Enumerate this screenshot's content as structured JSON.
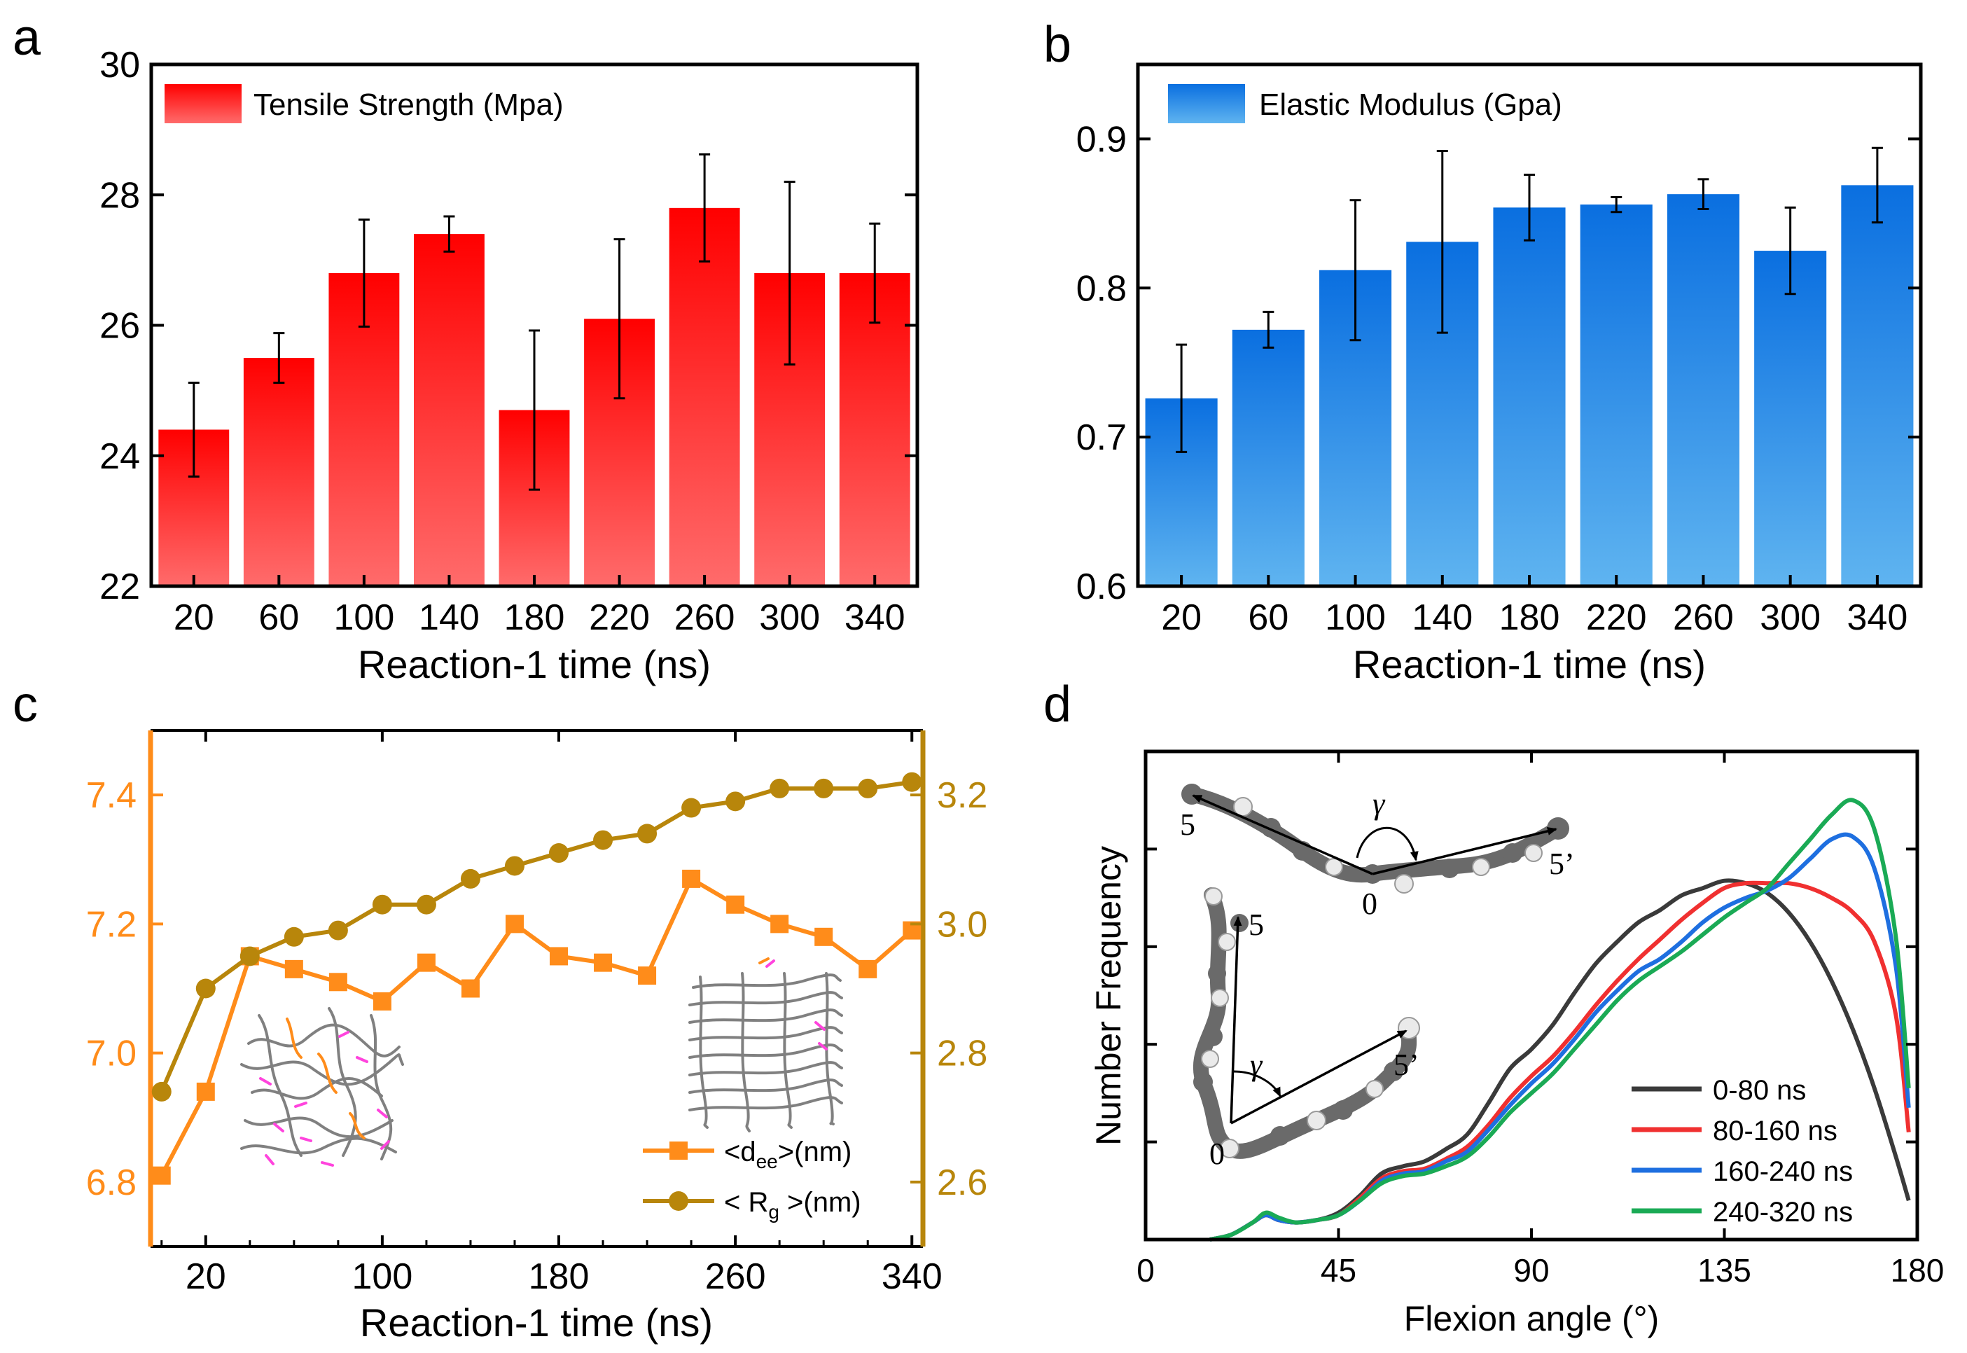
{
  "chart_data": [
    {
      "panel_label": "a",
      "type": "bar",
      "title": "",
      "legend": "Tensile Strength (Mpa)",
      "legend_position": "top-left",
      "xlabel": "Reaction-1 time (ns)",
      "ylabel": "",
      "categories": [
        "20",
        "60",
        "100",
        "140",
        "180",
        "220",
        "260",
        "300",
        "340"
      ],
      "values": [
        24.4,
        25.5,
        26.8,
        27.4,
        24.7,
        26.1,
        27.8,
        26.8,
        26.8
      ],
      "errors": [
        0.72,
        0.38,
        0.82,
        0.27,
        1.22,
        1.22,
        0.82,
        1.4,
        0.76
      ],
      "ylim": [
        22,
        30
      ],
      "yticks": [
        "22",
        "24",
        "26",
        "28",
        "30"
      ],
      "color_top": "#ff0000",
      "color_bottom": "#ff6b6b"
    },
    {
      "panel_label": "b",
      "type": "bar",
      "title": "",
      "legend": "Elastic Modulus (Gpa)",
      "legend_position": "top-left",
      "xlabel": "Reaction-1 time (ns)",
      "ylabel": "",
      "categories": [
        "20",
        "60",
        "100",
        "140",
        "180",
        "220",
        "260",
        "300",
        "340"
      ],
      "values": [
        0.726,
        0.772,
        0.812,
        0.831,
        0.854,
        0.856,
        0.863,
        0.825,
        0.869
      ],
      "errors": [
        0.036,
        0.012,
        0.047,
        0.061,
        0.022,
        0.005,
        0.01,
        0.029,
        0.025
      ],
      "ylim": [
        0.6,
        0.95
      ],
      "yticks": [
        "0.6",
        "0.7",
        "0.8",
        "0.9"
      ],
      "color_top": "#0a6fe0",
      "color_bottom": "#5fb4f0"
    },
    {
      "panel_label": "c",
      "type": "line",
      "title": "",
      "xlabel": "Reaction-1 time (ns)",
      "xticks": [
        "20",
        "100",
        "180",
        "260",
        "340"
      ],
      "xlim": [
        -5,
        345
      ],
      "left_ylim": [
        6.7,
        7.5
      ],
      "left_yticks": [
        "6.8",
        "7.0",
        "7.2",
        "7.4"
      ],
      "right_ylim": [
        2.5,
        3.3
      ],
      "right_yticks": [
        "2.6",
        "2.8",
        "3.0",
        "3.2"
      ],
      "legend_position": "bottom-right",
      "series": [
        {
          "name": "<d",
          "name_sub": "ee",
          "name_tail": ">(nm)",
          "axis": "left",
          "marker": "square",
          "color": "#ff8c1a",
          "x": [
            0,
            20,
            40,
            60,
            80,
            100,
            120,
            140,
            160,
            180,
            200,
            220,
            240,
            260,
            280,
            300,
            320,
            340
          ],
          "y": [
            6.81,
            6.94,
            7.15,
            7.13,
            7.11,
            7.08,
            7.14,
            7.1,
            7.2,
            7.15,
            7.14,
            7.12,
            7.27,
            7.23,
            7.2,
            7.18,
            7.13,
            7.19
          ]
        },
        {
          "name": "< R",
          "name_sub": "g",
          "name_tail": " >(nm)",
          "axis": "right",
          "marker": "circle",
          "color": "#b8860b",
          "x": [
            0,
            20,
            40,
            60,
            80,
            100,
            120,
            140,
            160,
            180,
            200,
            220,
            240,
            260,
            280,
            300,
            320,
            340
          ],
          "y": [
            2.74,
            2.9,
            2.95,
            2.98,
            2.99,
            3.03,
            3.03,
            3.07,
            3.09,
            3.11,
            3.13,
            3.14,
            3.18,
            3.19,
            3.21,
            3.21,
            3.21,
            3.22
          ]
        }
      ]
    },
    {
      "panel_label": "d",
      "type": "line",
      "title": "",
      "xlabel": "Flexion angle (°)",
      "ylabel": "Number Frequency",
      "xticks": [
        "0",
        "45",
        "90",
        "135",
        "180"
      ],
      "xlim": [
        0,
        180
      ],
      "ylim": [
        0,
        1
      ],
      "legend_position": "bottom-right",
      "inset_labels": {
        "top_end_left": "5",
        "top_end_right": "5’",
        "top_vertex": "0",
        "top_angle": "γ",
        "bottom_end_top": "5",
        "bottom_end_right": "5’",
        "bottom_vertex": "0",
        "bottom_angle": "γ"
      },
      "series": [
        {
          "name": "0-80 ns",
          "color": "#3a3a3a",
          "x": [
            15,
            20,
            25,
            28,
            31,
            35,
            40,
            45,
            50,
            55,
            60,
            65,
            70,
            75,
            80,
            85,
            90,
            95,
            100,
            105,
            110,
            115,
            120,
            125,
            130,
            135,
            140,
            145,
            150,
            155,
            160,
            165,
            170,
            175,
            178
          ],
          "y": [
            0.0,
            0.01,
            0.035,
            0.05,
            0.04,
            0.035,
            0.04,
            0.055,
            0.09,
            0.135,
            0.15,
            0.16,
            0.185,
            0.215,
            0.28,
            0.35,
            0.39,
            0.44,
            0.505,
            0.565,
            0.61,
            0.65,
            0.675,
            0.705,
            0.72,
            0.735,
            0.73,
            0.71,
            0.67,
            0.61,
            0.53,
            0.43,
            0.31,
            0.17,
            0.08
          ]
        },
        {
          "name": "80-160 ns",
          "color": "#f03030",
          "x": [
            15,
            20,
            25,
            28,
            31,
            35,
            40,
            45,
            50,
            55,
            60,
            65,
            70,
            75,
            80,
            85,
            90,
            95,
            100,
            105,
            110,
            115,
            120,
            125,
            130,
            135,
            140,
            145,
            150,
            155,
            160,
            165,
            170,
            175,
            178
          ],
          "y": [
            0.0,
            0.01,
            0.035,
            0.05,
            0.04,
            0.035,
            0.04,
            0.05,
            0.085,
            0.125,
            0.14,
            0.145,
            0.165,
            0.19,
            0.235,
            0.29,
            0.335,
            0.375,
            0.425,
            0.48,
            0.53,
            0.575,
            0.615,
            0.655,
            0.69,
            0.72,
            0.73,
            0.73,
            0.73,
            0.72,
            0.7,
            0.67,
            0.61,
            0.46,
            0.22
          ]
        },
        {
          "name": "160-240 ns",
          "color": "#1e6fe0",
          "x": [
            15,
            20,
            25,
            28,
            31,
            35,
            40,
            45,
            50,
            55,
            60,
            65,
            70,
            75,
            80,
            85,
            90,
            95,
            100,
            105,
            110,
            115,
            120,
            125,
            130,
            135,
            140,
            145,
            150,
            155,
            160,
            165,
            170,
            175,
            178
          ],
          "y": [
            0.0,
            0.01,
            0.035,
            0.05,
            0.04,
            0.035,
            0.04,
            0.05,
            0.08,
            0.12,
            0.135,
            0.14,
            0.16,
            0.18,
            0.225,
            0.275,
            0.32,
            0.36,
            0.41,
            0.465,
            0.51,
            0.55,
            0.575,
            0.61,
            0.65,
            0.68,
            0.7,
            0.715,
            0.74,
            0.78,
            0.82,
            0.825,
            0.76,
            0.56,
            0.27
          ]
        },
        {
          "name": "240-320 ns",
          "color": "#1aaa55",
          "x": [
            15,
            20,
            25,
            28,
            31,
            35,
            40,
            45,
            50,
            55,
            60,
            65,
            70,
            75,
            80,
            85,
            90,
            95,
            100,
            105,
            110,
            115,
            120,
            125,
            130,
            135,
            140,
            145,
            150,
            155,
            160,
            165,
            170,
            175,
            178
          ],
          "y": [
            0.0,
            0.01,
            0.035,
            0.055,
            0.045,
            0.035,
            0.04,
            0.05,
            0.08,
            0.115,
            0.13,
            0.135,
            0.15,
            0.17,
            0.21,
            0.26,
            0.3,
            0.34,
            0.39,
            0.44,
            0.49,
            0.53,
            0.56,
            0.59,
            0.625,
            0.66,
            0.69,
            0.72,
            0.77,
            0.82,
            0.87,
            0.9,
            0.84,
            0.62,
            0.31
          ]
        }
      ]
    }
  ]
}
